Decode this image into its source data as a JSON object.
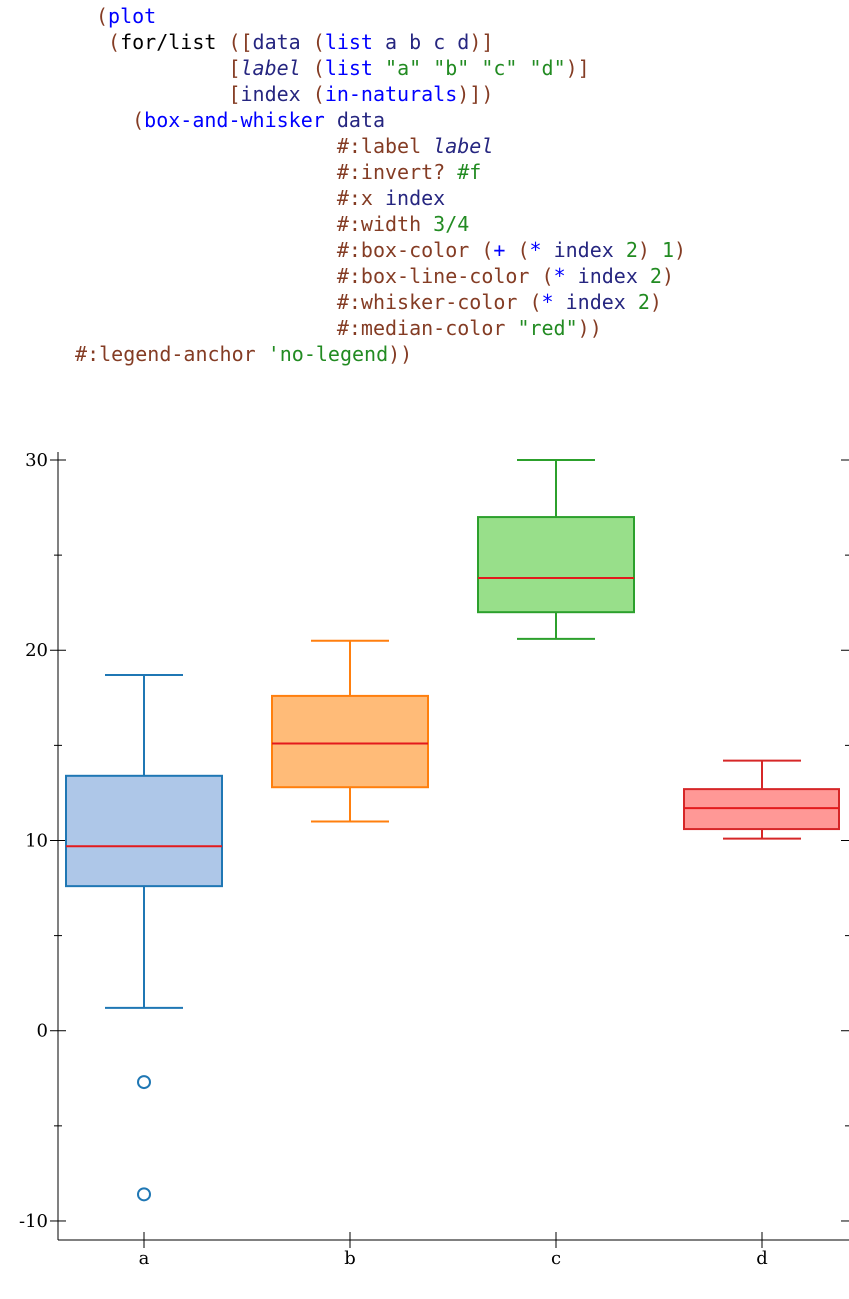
{
  "code": [
    [
      [
        "(",
        "p"
      ],
      [
        "plot",
        "b"
      ]
    ],
    [
      [
        " (",
        "p"
      ],
      [
        "for/list",
        "k"
      ],
      [
        " ([",
        "p"
      ],
      [
        "data",
        "n"
      ],
      [
        " (",
        "p"
      ],
      [
        "list",
        "b"
      ],
      [
        " a b c d",
        "n"
      ],
      [
        ")]",
        "p"
      ]
    ],
    [
      [
        "           [",
        "p"
      ],
      [
        "label",
        "n it"
      ],
      [
        " (",
        "p"
      ],
      [
        "list",
        "b"
      ],
      [
        " \"a\" \"b\" \"c\" \"d\"",
        "s"
      ],
      [
        ")]",
        "p"
      ]
    ],
    [
      [
        "           [",
        "p"
      ],
      [
        "index",
        "n"
      ],
      [
        " (",
        "p"
      ],
      [
        "in-naturals",
        "b"
      ],
      [
        ")])",
        "p"
      ]
    ],
    [
      [
        "   (",
        "p"
      ],
      [
        "box-and-whisker",
        "b"
      ],
      [
        " data",
        "n"
      ]
    ],
    [
      [
        "                    #:label ",
        "kw"
      ],
      [
        "label",
        "n it"
      ]
    ],
    [
      [
        "                    #:invert? ",
        "kw"
      ],
      [
        "#f",
        "lit"
      ]
    ],
    [
      [
        "                    #:x ",
        "kw"
      ],
      [
        "index",
        "n"
      ]
    ],
    [
      [
        "                    #:width ",
        "kw"
      ],
      [
        "3/4",
        "lit"
      ]
    ],
    [
      [
        "                    #:box-color ",
        "kw"
      ],
      [
        "(",
        "p"
      ],
      [
        "+",
        "b"
      ],
      [
        " (",
        "p"
      ],
      [
        "*",
        "b"
      ],
      [
        " index ",
        "n"
      ],
      [
        "2",
        "lit"
      ],
      [
        ")",
        "p"
      ],
      [
        " 1",
        "lit"
      ],
      [
        ")",
        "p"
      ]
    ],
    [
      [
        "                    #:box-line-color ",
        "kw"
      ],
      [
        "(",
        "p"
      ],
      [
        "*",
        "b"
      ],
      [
        " index ",
        "n"
      ],
      [
        "2",
        "lit"
      ],
      [
        ")",
        "p"
      ]
    ],
    [
      [
        "                    #:whisker-color ",
        "kw"
      ],
      [
        "(",
        "p"
      ],
      [
        "*",
        "b"
      ],
      [
        " index ",
        "n"
      ],
      [
        "2",
        "lit"
      ],
      [
        ")",
        "p"
      ]
    ],
    [
      [
        "                    #:median-color ",
        "kw"
      ],
      [
        "\"red\"",
        "s"
      ],
      [
        "))",
        "p"
      ]
    ],
    [
      [
        " #:legend-anchor ",
        "kw"
      ],
      [
        "'no-legend",
        "s"
      ],
      [
        "))",
        "p"
      ]
    ]
  ],
  "chart_data": {
    "type": "box",
    "categories": [
      "a",
      "b",
      "c",
      "d"
    ],
    "ylim": [
      -11,
      30
    ],
    "yticks": [
      -10,
      0,
      10,
      20,
      30
    ],
    "ytick_labels": [
      "-10",
      "0",
      "10",
      "20",
      "30"
    ],
    "legend": "none",
    "median_color": "#e31a1c",
    "boxes": [
      {
        "label": "a",
        "x": 0,
        "whisker_low": 1.2,
        "q1": 7.6,
        "median": 9.7,
        "q3": 13.4,
        "whisker_high": 18.7,
        "outliers": [
          -2.7,
          -8.6
        ],
        "fill": "#aec7e8",
        "line": "#1f77b4"
      },
      {
        "label": "b",
        "x": 1,
        "whisker_low": 11.0,
        "q1": 12.8,
        "median": 15.1,
        "q3": 17.6,
        "whisker_high": 20.5,
        "outliers": [],
        "fill": "#ffbb78",
        "line": "#ff7f0e"
      },
      {
        "label": "c",
        "x": 2,
        "whisker_low": 20.6,
        "q1": 22.0,
        "median": 23.8,
        "q3": 27.0,
        "whisker_high": 30.0,
        "outliers": [],
        "fill": "#98df8a",
        "line": "#2ca02c"
      },
      {
        "label": "d",
        "x": 3,
        "whisker_low": 10.1,
        "q1": 10.6,
        "median": 11.7,
        "q3": 12.7,
        "whisker_high": 14.2,
        "outliers": [],
        "fill": "#ff9896",
        "line": "#d62728"
      }
    ]
  }
}
